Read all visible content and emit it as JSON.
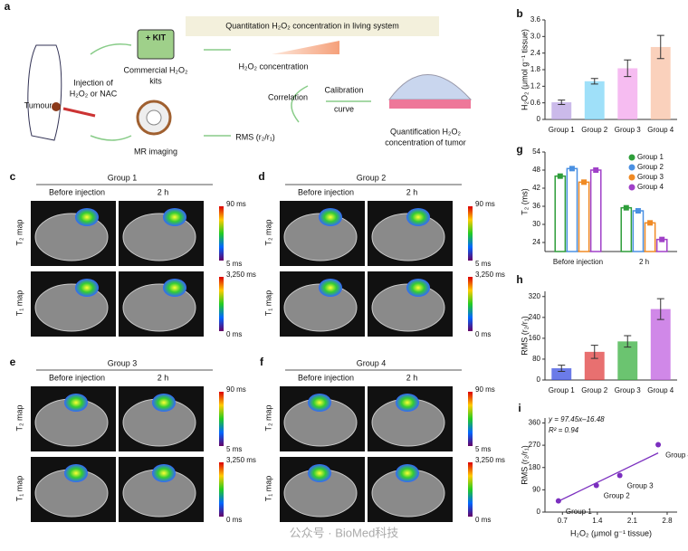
{
  "diagram": {
    "panel": "a",
    "banner": "Quantitation H₂O₂ concentration in living system",
    "kit": "+ KIT",
    "kits_label": [
      "Commercial H₂O₂",
      "kits"
    ],
    "injection": [
      "Injection of",
      "H₂O₂ or NAC"
    ],
    "tumour": "Tumour",
    "mr": "MR imaging",
    "concentration": "H₂O₂ concentration",
    "correlation": "Correlation",
    "calibration": "Calibration",
    "curve": "curve",
    "rms": "RMS (r₂/r₁)",
    "quant": [
      "Quantification H₂O₂",
      "concentration of tumor"
    ]
  },
  "mri_panels": [
    {
      "panel": "c",
      "group": "Group 1",
      "columns": [
        "Before injection",
        "2 h"
      ],
      "rows": [
        "T₂ map",
        "T₁ map"
      ],
      "scales": [
        [
          "90 ms",
          "5 ms"
        ],
        [
          "3,250 ms",
          "0 ms"
        ]
      ]
    },
    {
      "panel": "d",
      "group": "Group 2",
      "columns": [
        "Before injection",
        "2 h"
      ],
      "rows": [
        "T₂ map",
        "T₁ map"
      ],
      "scales": [
        [
          "90 ms",
          "5 ms"
        ],
        [
          "3,250 ms",
          "0 ms"
        ]
      ]
    },
    {
      "panel": "e",
      "group": "Group 3",
      "columns": [
        "Before injection",
        "2 h"
      ],
      "rows": [
        "T₂ map",
        "T₁ map"
      ],
      "scales": [
        [
          "90 ms",
          "5 ms"
        ],
        [
          "3,250 ms",
          "0 ms"
        ]
      ]
    },
    {
      "panel": "f",
      "group": "Group 4",
      "columns": [
        "Before injection",
        "2 h"
      ],
      "rows": [
        "T₂ map",
        "T₁ map"
      ],
      "scales": [
        [
          "90 ms",
          "5 ms"
        ],
        [
          "3,250 ms",
          "0 ms"
        ]
      ]
    }
  ],
  "chart_data": [
    {
      "type": "bar",
      "panel": "b",
      "y_label": "H₂O₂ (μmol g⁻¹ tissue)",
      "categories": [
        "Group 1",
        "Group 2",
        "Group 3",
        "Group 4"
      ],
      "values": [
        0.62,
        1.38,
        1.85,
        2.62
      ],
      "errors": [
        0.08,
        0.1,
        0.3,
        0.42
      ],
      "colors": [
        "#b9a3e3",
        "#7fd6f7",
        "#f3a6ec",
        "#f8c2a6"
      ],
      "ylim": [
        0,
        3.6
      ],
      "yticks": [
        0,
        0.6,
        1.2,
        1.8,
        2.4,
        {
          "value": 3,
          "label": "3.0"
        },
        3.6
      ]
    },
    {
      "type": "bar",
      "panel": "g",
      "y_label": "T₂ (ms)",
      "categories": [
        "Before injection",
        "2 h"
      ],
      "series": [
        {
          "name": "Group 1",
          "color": "#2e9e3a",
          "values": [
            46,
            35.5
          ]
        },
        {
          "name": "Group 2",
          "color": "#4a90e2",
          "values": [
            48.5,
            34.5
          ]
        },
        {
          "name": "Group 3",
          "color": "#f08a24",
          "values": [
            44,
            30.5
          ]
        },
        {
          "name": "Group 4",
          "color": "#a040c8",
          "values": [
            48,
            25
          ]
        }
      ],
      "ylim": [
        21,
        54
      ],
      "yticks": [
        24,
        30,
        36,
        42,
        48,
        54
      ],
      "legend": "upper right"
    },
    {
      "type": "bar",
      "panel": "h",
      "y_label": "RMS (r₂/r₁)",
      "categories": [
        "Group 1",
        "Group 2",
        "Group 3",
        "Group 4"
      ],
      "values": [
        45,
        108,
        148,
        272
      ],
      "errors": [
        12,
        25,
        22,
        40
      ],
      "colors": [
        "#3a4fe0",
        "#e04040",
        "#3ab040",
        "#c060e0"
      ],
      "ylim": [
        0,
        340
      ],
      "yticks": [
        0,
        80,
        160,
        240,
        320
      ]
    },
    {
      "type": "scatter",
      "panel": "i",
      "x_label": "H₂O₂ (μmol g⁻¹ tissue)",
      "y_label": "RMS (r₂/r₁)",
      "x": [
        0.62,
        1.38,
        1.85,
        2.62
      ],
      "values": [
        45,
        108,
        148,
        272
      ],
      "labels": [
        "Group 1",
        "Group 2",
        "Group 3",
        "Group 4"
      ],
      "color": "#7b2fbf",
      "xlim": [
        0.35,
        3.0
      ],
      "xticks": [
        0.7,
        1.4,
        2.1,
        2.8
      ],
      "ylim": [
        0,
        380
      ],
      "yticks": [
        0,
        90,
        180,
        270,
        360
      ],
      "annotations": [
        "y = 97.45x–16.48",
        "R² = 0.94"
      ],
      "fit": {
        "slope": 97.45,
        "intercept": -16.48
      }
    }
  ],
  "watermark": "公众号 · BioMed科技"
}
